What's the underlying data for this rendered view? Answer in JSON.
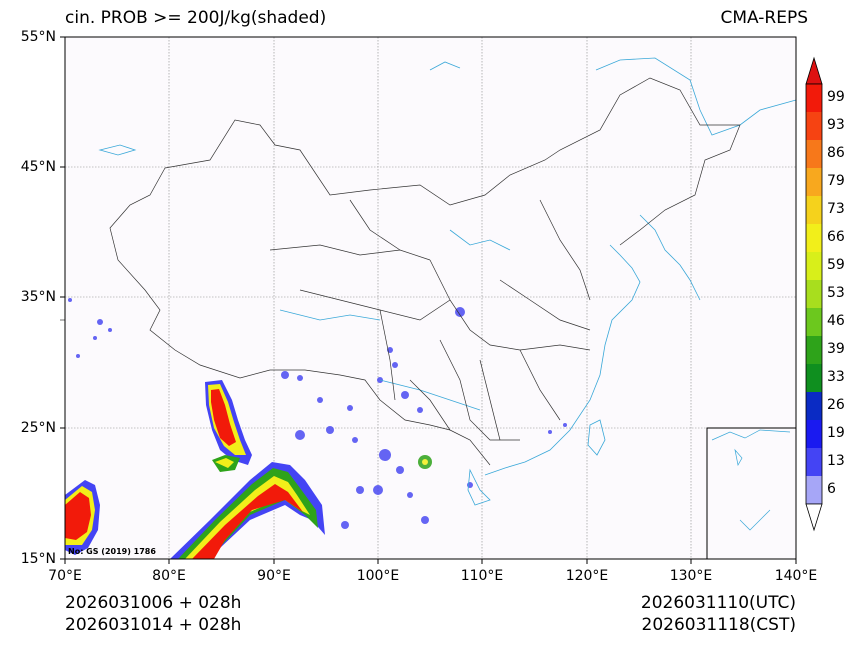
{
  "title": {
    "left": "cin. PROB >= 200J/kg(shaded)",
    "right": "CMA-REPS"
  },
  "lat_labels": [
    "55°N",
    "45°N",
    "35°N",
    "25°N",
    "15°N"
  ],
  "lon_labels": [
    "70°E",
    "80°E",
    "90°E",
    "100°E",
    "110°E",
    "120°E",
    "130°E",
    "140°E"
  ],
  "map_note": "No: GS (2019) 1786",
  "colorbar": {
    "labels": [
      "99",
      "93",
      "86",
      "79",
      "73",
      "66",
      "59",
      "53",
      "46",
      "39",
      "33",
      "26",
      "19",
      "13",
      "6"
    ],
    "colors": [
      "#f21a0a",
      "#f64312",
      "#f7781a",
      "#f8a81e",
      "#f5d21c",
      "#f2ef1a",
      "#d8ef1a",
      "#a8de1e",
      "#6cc81e",
      "#2ea31a",
      "#0f8f1f",
      "#0a2bc4",
      "#1a1af0",
      "#4444f4",
      "#a6a6f7"
    ],
    "top_arrow_color": "#dd1111",
    "bottom_arrow_color": "#ffffff"
  },
  "footer": {
    "left_line1": "2026031006  +  028h",
    "left_line2": "2026031014  +  028h",
    "right_line1": "2026031110(UTC)",
    "right_line2": "2026031118(CST)"
  },
  "colors": {
    "coast": "#3aa8d8",
    "border": "#333333",
    "background": "#fcfafd"
  }
}
